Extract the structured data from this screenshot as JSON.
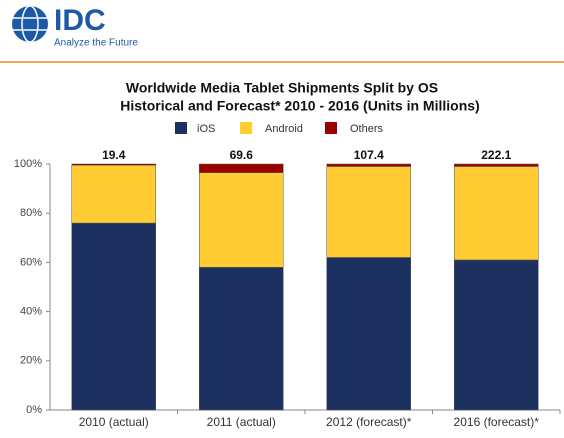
{
  "logo": {
    "name": "IDC",
    "tagline": "Analyze the Future"
  },
  "chart_data": {
    "type": "stacked_bar_100",
    "title": "Worldwide Media Tablet Shipments Split by OS",
    "subtitle": "Historical and Forecast* 2010 - 2016 (Units in Millions)",
    "categories": [
      "2010 (actual)",
      "2011 (actual)",
      "2012 (forecast)*",
      "2016 (forecast)*"
    ],
    "totals": [
      19.4,
      69.6,
      107.4,
      222.1
    ],
    "series": [
      {
        "name": "iOS",
        "color": "#1c3160",
        "values": [
          76,
          58,
          62,
          61
        ]
      },
      {
        "name": "Android",
        "color": "#ffcc33",
        "values": [
          23.5,
          38.5,
          37,
          38
        ]
      },
      {
        "name": "Others",
        "color": "#990000",
        "values": [
          0.5,
          3.5,
          1,
          1
        ]
      }
    ],
    "ylim": [
      0,
      100
    ],
    "yticks": [
      {
        "value": 0,
        "label": "0%"
      },
      {
        "value": 20,
        "label": "20%"
      },
      {
        "value": 40,
        "label": "40%"
      },
      {
        "value": 60,
        "label": "60%"
      },
      {
        "value": 80,
        "label": "80%"
      },
      {
        "value": 100,
        "label": "100%"
      }
    ]
  }
}
